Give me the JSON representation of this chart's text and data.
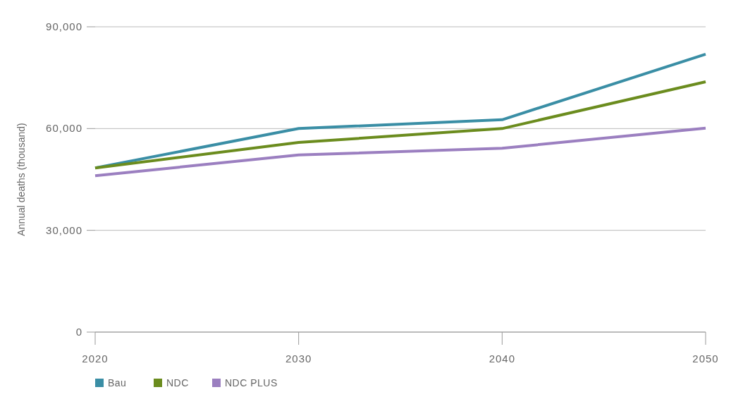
{
  "chart_data": {
    "type": "line",
    "ylabel": "Annual deaths (thousand)",
    "x": [
      2020,
      2030,
      2040,
      2050
    ],
    "xlim": [
      2020,
      2050
    ],
    "xticks": [
      2020,
      2030,
      2040,
      2050
    ],
    "ylim": [
      0,
      90000
    ],
    "yticks": [
      {
        "value": 0,
        "label": "0"
      },
      {
        "value": 30000,
        "label": "30,000"
      },
      {
        "value": 60000,
        "label": "60,000"
      },
      {
        "value": 90000,
        "label": "90,000"
      }
    ],
    "grid": "y",
    "legend": "bottom",
    "line_style": "solid",
    "marker": "none",
    "series": [
      {
        "name": "Bau",
        "color": "#3a8ea5",
        "values": [
          48400,
          60000,
          62600,
          81900
        ]
      },
      {
        "name": "NDC",
        "color": "#6b8c1e",
        "values": [
          48400,
          55900,
          60000,
          73800
        ]
      },
      {
        "name": "NDC PLUS",
        "color": "#9b7fc0",
        "values": [
          46100,
          52200,
          54200,
          60100
        ]
      }
    ]
  }
}
